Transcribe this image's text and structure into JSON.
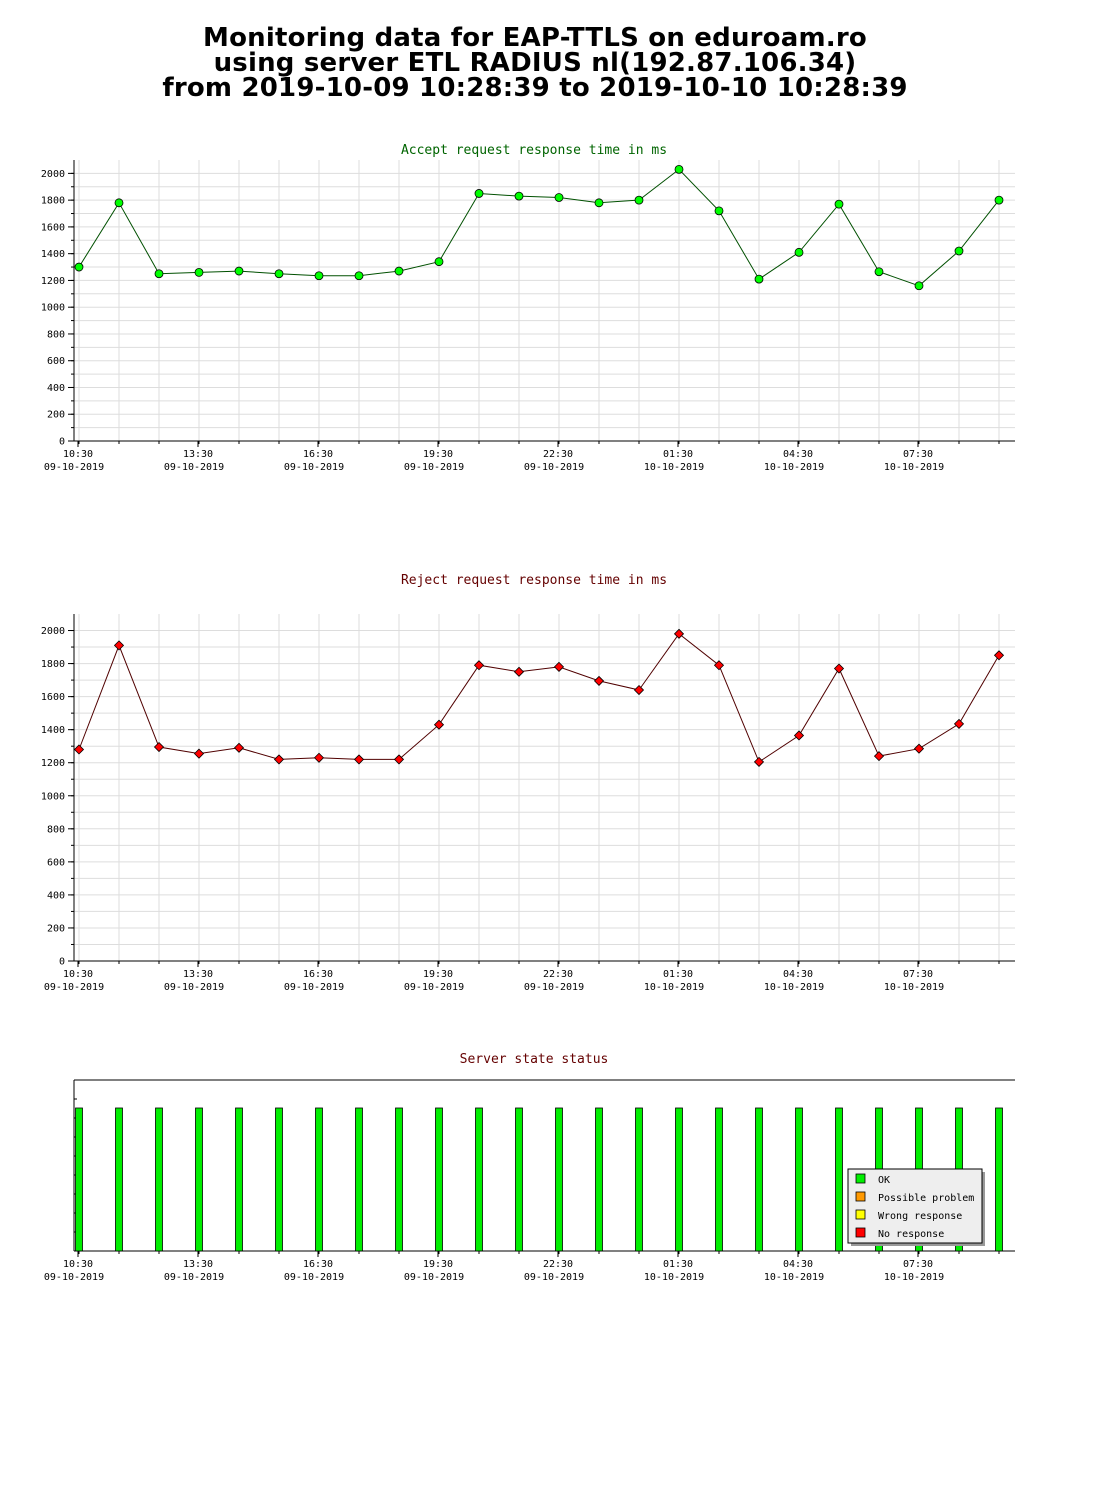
{
  "page_title": {
    "line1": "Monitoring data for EAP-TTLS on eduroam.ro",
    "line2": "using server ETL RADIUS nl(192.87.106.34)",
    "line3": "from 2019-10-09 10:28:39 to 2019-10-10 10:28:39"
  },
  "colors": {
    "accept_title": "#006400",
    "reject_title": "#640000",
    "status_title": "#640000",
    "accept_marker": "#00ff00",
    "reject_marker": "#ff0000",
    "accept_line": "#005000",
    "reject_line": "#500000",
    "ok": "#00ee00",
    "possible_problem": "#ff9900",
    "wrong_response": "#ffff00",
    "no_response": "#ff0000",
    "grid": "#dddddd"
  },
  "chart_data": [
    {
      "type": "line",
      "title": "Accept request response time in ms",
      "xlabel": "",
      "ylabel": "",
      "ylim": [
        0,
        2100
      ],
      "yticks": [
        0,
        200,
        400,
        600,
        800,
        1000,
        1200,
        1400,
        1600,
        1800,
        2000
      ],
      "xticks": [
        {
          "time": "10:30",
          "date": "09-10-2019"
        },
        {
          "time": "13:30",
          "date": "09-10-2019"
        },
        {
          "time": "16:30",
          "date": "09-10-2019"
        },
        {
          "time": "19:30",
          "date": "09-10-2019"
        },
        {
          "time": "22:30",
          "date": "09-10-2019"
        },
        {
          "time": "01:30",
          "date": "10-10-2019"
        },
        {
          "time": "04:30",
          "date": "10-10-2019"
        },
        {
          "time": "07:30",
          "date": "10-10-2019"
        }
      ],
      "x": [
        "10:30",
        "11:30",
        "12:30",
        "13:30",
        "14:30",
        "15:30",
        "16:30",
        "17:30",
        "18:30",
        "19:30",
        "20:30",
        "21:30",
        "22:30",
        "23:30",
        "00:30",
        "01:30",
        "02:30",
        "03:30",
        "04:30",
        "05:30",
        "06:30",
        "07:30",
        "08:30",
        "09:30"
      ],
      "series": [
        {
          "values": [
            1300,
            1780,
            1250,
            1260,
            1270,
            1250,
            1235,
            1235,
            1270,
            1340,
            1850,
            1830,
            1820,
            1780,
            1800,
            2030,
            1720,
            1210,
            1410,
            1770,
            1265,
            1160,
            1420,
            1800
          ]
        }
      ],
      "grid": true
    },
    {
      "type": "line",
      "title": "Reject request response time in ms",
      "xlabel": "",
      "ylabel": "",
      "ylim": [
        0,
        2100
      ],
      "yticks": [
        0,
        200,
        400,
        600,
        800,
        1000,
        1200,
        1400,
        1600,
        1800,
        2000
      ],
      "xticks": [
        {
          "time": "10:30",
          "date": "09-10-2019"
        },
        {
          "time": "13:30",
          "date": "09-10-2019"
        },
        {
          "time": "16:30",
          "date": "09-10-2019"
        },
        {
          "time": "19:30",
          "date": "09-10-2019"
        },
        {
          "time": "22:30",
          "date": "09-10-2019"
        },
        {
          "time": "01:30",
          "date": "10-10-2019"
        },
        {
          "time": "04:30",
          "date": "10-10-2019"
        },
        {
          "time": "07:30",
          "date": "10-10-2019"
        }
      ],
      "x": [
        "10:30",
        "11:30",
        "12:30",
        "13:30",
        "14:30",
        "15:30",
        "16:30",
        "17:30",
        "18:30",
        "19:30",
        "20:30",
        "21:30",
        "22:30",
        "23:30",
        "00:30",
        "01:30",
        "02:30",
        "03:30",
        "04:30",
        "05:30",
        "06:30",
        "07:30",
        "08:30",
        "09:30"
      ],
      "series": [
        {
          "values": [
            1280,
            1910,
            1295,
            1255,
            1290,
            1220,
            1230,
            1220,
            1220,
            1430,
            1790,
            1750,
            1780,
            1695,
            1640,
            1980,
            1790,
            1205,
            1365,
            1770,
            1240,
            1285,
            1435,
            1850
          ]
        }
      ],
      "grid": true
    },
    {
      "type": "bar",
      "title": "Server state status",
      "xticks": [
        {
          "time": "10:30",
          "date": "09-10-2019"
        },
        {
          "time": "13:30",
          "date": "09-10-2019"
        },
        {
          "time": "16:30",
          "date": "09-10-2019"
        },
        {
          "time": "19:30",
          "date": "09-10-2019"
        },
        {
          "time": "22:30",
          "date": "09-10-2019"
        },
        {
          "time": "01:30",
          "date": "10-10-2019"
        },
        {
          "time": "04:30",
          "date": "10-10-2019"
        },
        {
          "time": "07:30",
          "date": "10-10-2019"
        }
      ],
      "x": [
        "10:30",
        "11:30",
        "12:30",
        "13:30",
        "14:30",
        "15:30",
        "16:30",
        "17:30",
        "18:30",
        "19:30",
        "20:30",
        "21:30",
        "22:30",
        "23:30",
        "00:30",
        "01:30",
        "02:30",
        "03:30",
        "04:30",
        "05:30",
        "06:30",
        "07:30",
        "08:30",
        "09:30"
      ],
      "states": [
        "OK",
        "OK",
        "OK",
        "OK",
        "OK",
        "OK",
        "OK",
        "OK",
        "OK",
        "OK",
        "OK",
        "OK",
        "OK",
        "OK",
        "OK",
        "OK",
        "OK",
        "OK",
        "OK",
        "OK",
        "OK",
        "OK",
        "OK",
        "OK"
      ],
      "legend": {
        "position": "lower-right",
        "entries": [
          "OK",
          "Possible problem",
          "Wrong response",
          "No response"
        ]
      }
    }
  ]
}
